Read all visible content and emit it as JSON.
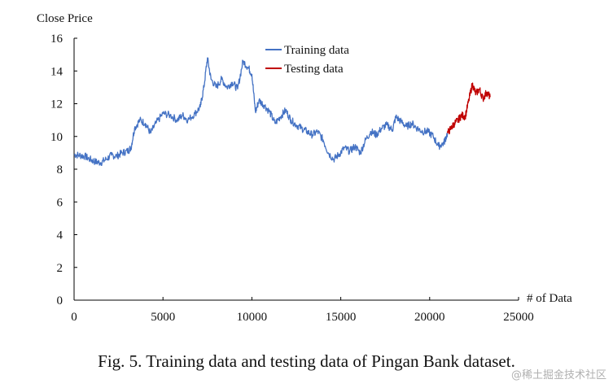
{
  "chart_data": {
    "type": "line",
    "title": "",
    "xlabel": "# of Data",
    "ylabel": "Close Price",
    "xlim": [
      0,
      25000
    ],
    "ylim": [
      0,
      16
    ],
    "x_ticks": [
      "0",
      "5000",
      "10000",
      "15000",
      "20000",
      "25000"
    ],
    "y_ticks": [
      "0",
      "2",
      "4",
      "6",
      "8",
      "10",
      "12",
      "14",
      "16"
    ],
    "grid": false,
    "legend_position": "top-center",
    "series": [
      {
        "name": "Training data",
        "color": "#4472c4",
        "points": [
          [
            0,
            8.9
          ],
          [
            300,
            8.85
          ],
          [
            600,
            8.8
          ],
          [
            900,
            8.6
          ],
          [
            1200,
            8.45
          ],
          [
            1500,
            8.4
          ],
          [
            1800,
            8.6
          ],
          [
            2100,
            8.85
          ],
          [
            2400,
            8.8
          ],
          [
            2700,
            9.0
          ],
          [
            3000,
            9.1
          ],
          [
            3200,
            9.3
          ],
          [
            3400,
            10.5
          ],
          [
            3700,
            11.0
          ],
          [
            4000,
            10.8
          ],
          [
            4300,
            10.2
          ],
          [
            4600,
            10.8
          ],
          [
            5000,
            11.4
          ],
          [
            5400,
            11.3
          ],
          [
            5800,
            11.0
          ],
          [
            6100,
            11.3
          ],
          [
            6400,
            11.0
          ],
          [
            6800,
            11.4
          ],
          [
            7100,
            11.8
          ],
          [
            7300,
            13.0
          ],
          [
            7500,
            14.8
          ],
          [
            7700,
            13.5
          ],
          [
            8000,
            13.0
          ],
          [
            8300,
            13.5
          ],
          [
            8600,
            13.0
          ],
          [
            8900,
            13.3
          ],
          [
            9200,
            12.9
          ],
          [
            9500,
            14.6
          ],
          [
            9800,
            14.2
          ],
          [
            10000,
            13.8
          ],
          [
            10200,
            11.5
          ],
          [
            10400,
            12.2
          ],
          [
            10700,
            11.9
          ],
          [
            11000,
            11.5
          ],
          [
            11300,
            10.8
          ],
          [
            11600,
            11.2
          ],
          [
            11900,
            11.6
          ],
          [
            12200,
            11.0
          ],
          [
            12500,
            10.7
          ],
          [
            12800,
            10.5
          ],
          [
            13100,
            10.3
          ],
          [
            13400,
            10.1
          ],
          [
            13700,
            10.3
          ],
          [
            14000,
            9.8
          ],
          [
            14300,
            9.0
          ],
          [
            14600,
            8.6
          ],
          [
            14900,
            8.9
          ],
          [
            15200,
            9.3
          ],
          [
            15500,
            9.1
          ],
          [
            15800,
            9.4
          ],
          [
            16100,
            9.0
          ],
          [
            16400,
            9.8
          ],
          [
            16700,
            10.3
          ],
          [
            17000,
            10.1
          ],
          [
            17300,
            10.5
          ],
          [
            17600,
            10.7
          ],
          [
            17900,
            10.4
          ],
          [
            18100,
            11.2
          ],
          [
            18400,
            10.9
          ],
          [
            18700,
            10.6
          ],
          [
            19000,
            10.8
          ],
          [
            19300,
            10.5
          ],
          [
            19600,
            10.3
          ],
          [
            19900,
            10.3
          ],
          [
            20200,
            10.0
          ],
          [
            20500,
            9.4
          ],
          [
            20800,
            9.6
          ],
          [
            21000,
            10.2
          ]
        ]
      },
      {
        "name": "Testing data",
        "color": "#c00000",
        "points": [
          [
            21000,
            10.2
          ],
          [
            21200,
            10.5
          ],
          [
            21400,
            10.8
          ],
          [
            21600,
            11.0
          ],
          [
            21800,
            11.3
          ],
          [
            22000,
            11.2
          ],
          [
            22200,
            12.2
          ],
          [
            22400,
            13.2
          ],
          [
            22600,
            12.6
          ],
          [
            22800,
            12.9
          ],
          [
            23000,
            12.3
          ],
          [
            23200,
            12.7
          ],
          [
            23400,
            12.4
          ]
        ]
      }
    ]
  },
  "caption": "Fig. 5.   Training data and testing data of Pingan Bank dataset.",
  "watermark": "@稀土掘金技术社区"
}
